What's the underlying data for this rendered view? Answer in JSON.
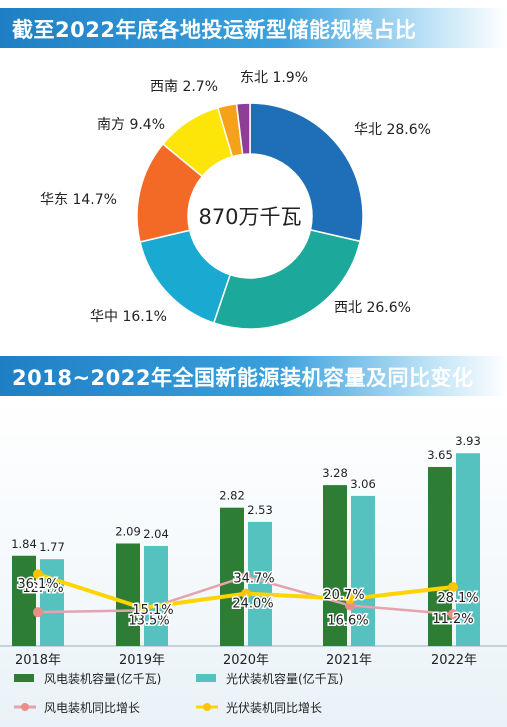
{
  "section1": {
    "title": "截至2022年底各地投运新型储能规模占比"
  },
  "section2": {
    "title": "2018~2022年全国新能源装机容量及同比变化"
  },
  "chart_data": [
    {
      "type": "pie",
      "center_label": "870万千瓦",
      "slices": [
        {
          "label": "华北 28.6%",
          "value": 28.6,
          "color": "#1f6fb8"
        },
        {
          "label": "西北 26.6%",
          "value": 26.6,
          "color": "#1ca99b"
        },
        {
          "label": "华中 16.1%",
          "value": 16.1,
          "color": "#19a9d1"
        },
        {
          "label": "华东 14.7%",
          "value": 14.7,
          "color": "#f26a25"
        },
        {
          "label": "南方 9.4%",
          "value": 9.4,
          "color": "#fde50a"
        },
        {
          "label": "西南 2.7%",
          "value": 2.7,
          "color": "#f5a21a"
        },
        {
          "label": "东北 1.9%",
          "value": 1.9,
          "color": "#8d3f96"
        }
      ]
    },
    {
      "type": "bar",
      "categories": [
        "2018年",
        "2019年",
        "2020年",
        "2021年",
        "2022年"
      ],
      "series": [
        {
          "name": "风电装机容量(亿千瓦)",
          "values": [
            1.84,
            2.09,
            2.82,
            3.28,
            3.65
          ],
          "labels": [
            "1.84",
            "2.09",
            "2.82",
            "3.28",
            "3.65"
          ],
          "color": "#2e7d35"
        },
        {
          "name": "光伏装机容量(亿千瓦)",
          "values": [
            1.77,
            2.04,
            2.53,
            3.06,
            3.93
          ],
          "labels": [
            "1.77",
            "2.04",
            "2.53",
            "3.06",
            "3.93"
          ],
          "color": "#56c2bf"
        }
      ],
      "line_series": [
        {
          "name": "风电装机同比增长",
          "values": [
            12.4,
            13.5,
            34.7,
            16.6,
            11.2
          ],
          "labels": [
            "12.4%",
            "13.5%",
            "34.7%",
            "16.6%",
            "11.2%"
          ],
          "color": "#e6a3ad"
        },
        {
          "name": "光伏装机同比增长",
          "values": [
            36.1,
            15.1,
            24.0,
            20.7,
            28.1
          ],
          "labels": [
            "36.1%",
            "15.1%",
            "24.0%",
            "20.7%",
            "28.1%"
          ],
          "color": "#ffd400"
        }
      ],
      "ylim": [
        0,
        4.2
      ]
    }
  ]
}
